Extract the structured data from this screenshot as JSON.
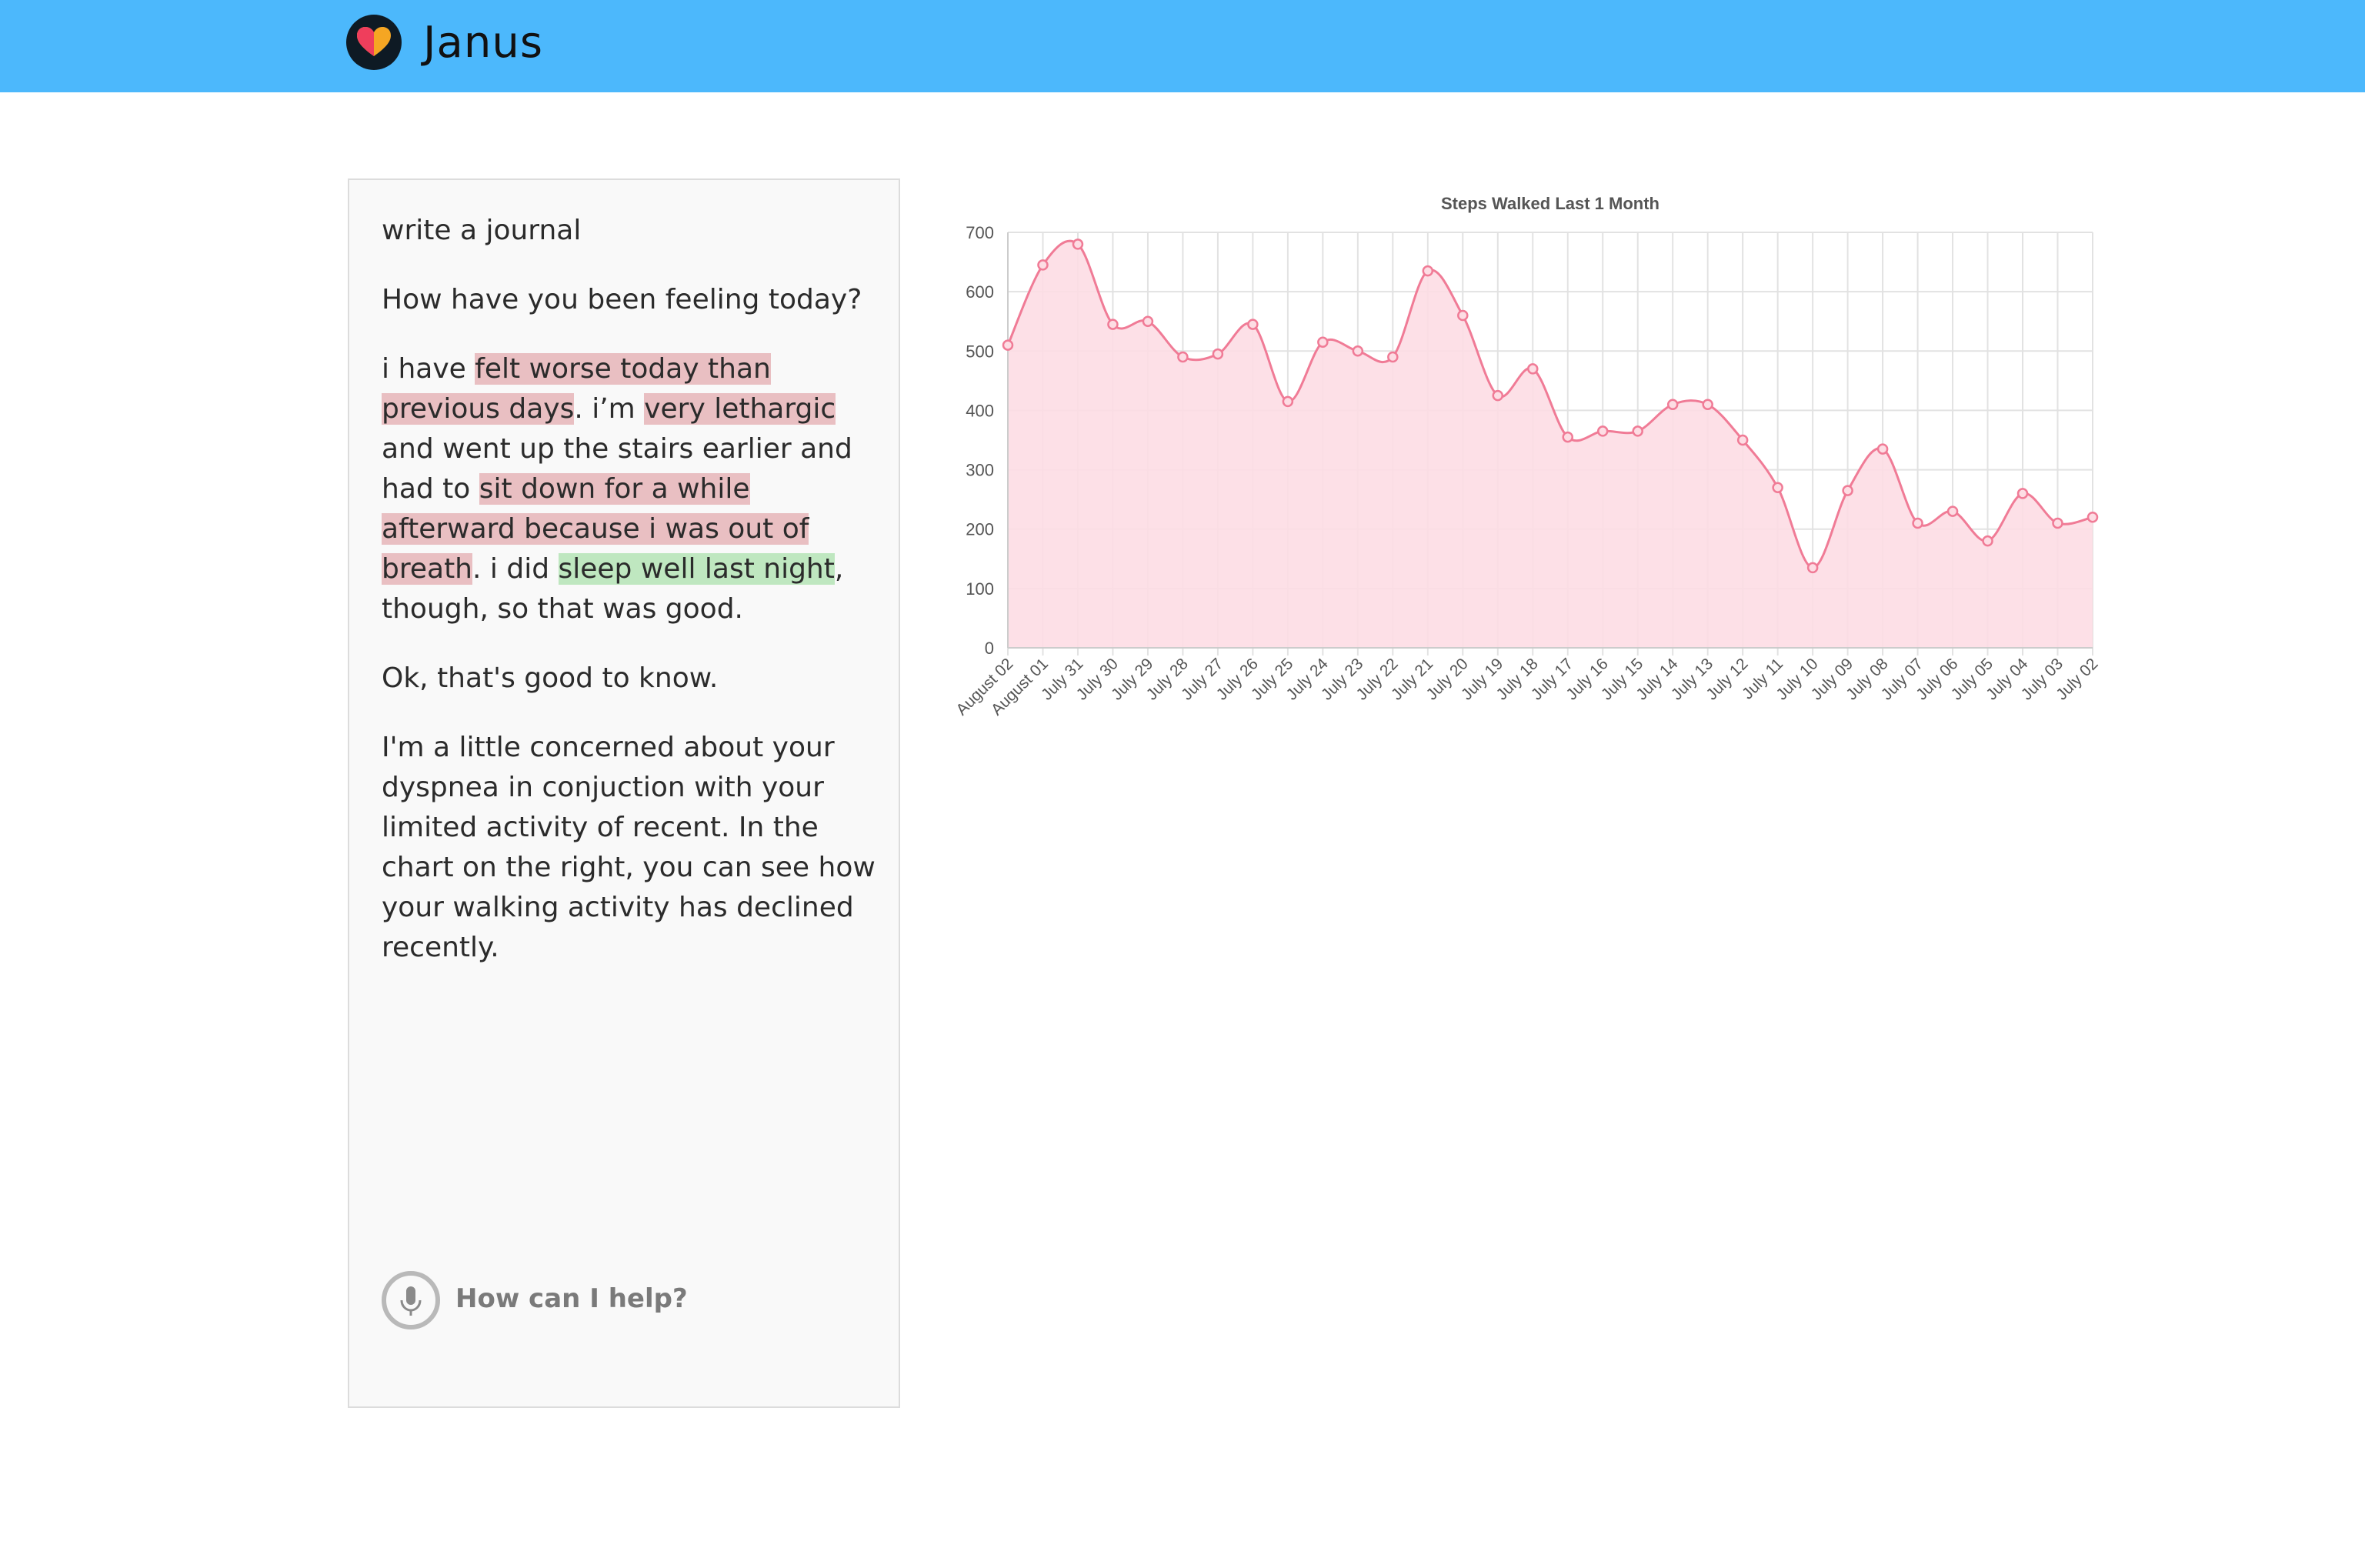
{
  "header": {
    "brand": "Janus",
    "logo_icon": "heart-logo-icon",
    "color": "#4cb8fc"
  },
  "conversation": {
    "messages": [
      {
        "id": "m1",
        "parts": [
          {
            "text": "write a journal",
            "hl": ""
          }
        ]
      },
      {
        "id": "m2",
        "parts": [
          {
            "text": "How have you been feeling today?",
            "hl": ""
          }
        ]
      },
      {
        "id": "m3",
        "parts": [
          {
            "text": "i have ",
            "hl": ""
          },
          {
            "text": "felt worse today than previous days",
            "hl": "red"
          },
          {
            "text": ". i’m ",
            "hl": ""
          },
          {
            "text": "very lethargic",
            "hl": "red"
          },
          {
            "text": " and went up the stairs earlier and had to ",
            "hl": ""
          },
          {
            "text": "sit down for a while afterward because i was out of breath",
            "hl": "red"
          },
          {
            "text": ". i did ",
            "hl": ""
          },
          {
            "text": "sleep well last night",
            "hl": "green"
          },
          {
            "text": ", though, so that was good.",
            "hl": ""
          }
        ]
      },
      {
        "id": "m4",
        "parts": [
          {
            "text": "Ok, that's good to know.",
            "hl": ""
          }
        ]
      },
      {
        "id": "m5",
        "parts": [
          {
            "text": "I'm a little concerned about your dyspnea in conjuction with your limited activity of recent. In the chart on the right, you can see how your walking activity has declined recently.",
            "hl": ""
          }
        ]
      }
    ],
    "input": {
      "placeholder": "How can I help?",
      "icon": "microphone-icon"
    },
    "colors": {
      "negative": "#e9bfc2",
      "positive": "#bfe7c0"
    }
  },
  "chart_data": {
    "type": "area",
    "title": "Steps Walked Last 1 Month",
    "xlabel": "",
    "ylabel": "",
    "ylim": [
      0,
      700
    ],
    "yticks": [
      0,
      100,
      200,
      300,
      400,
      500,
      600,
      700
    ],
    "grid": true,
    "categories": [
      "August 02",
      "August 01",
      "July 31",
      "July 30",
      "July 29",
      "July 28",
      "July 27",
      "July 26",
      "July 25",
      "July 24",
      "July 23",
      "July 22",
      "July 21",
      "July 20",
      "July 19",
      "July 18",
      "July 17",
      "July 16",
      "July 15",
      "July 14",
      "July 13",
      "July 12",
      "July 11",
      "July 10",
      "July 09",
      "July 08",
      "July 07",
      "July 06",
      "July 05",
      "July 04",
      "July 03",
      "July 02"
    ],
    "values": [
      510,
      645,
      680,
      545,
      550,
      490,
      495,
      545,
      415,
      515,
      500,
      490,
      635,
      560,
      425,
      470,
      355,
      365,
      365,
      410,
      410,
      350,
      270,
      135,
      265,
      335,
      210,
      230,
      180,
      260,
      210,
      220
    ],
    "line_color": "#f07b96",
    "fill_color": "#fddde4"
  }
}
